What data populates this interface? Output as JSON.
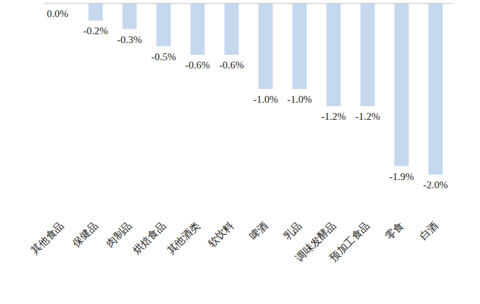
{
  "chart_data": {
    "type": "bar",
    "categories": [
      "其他食品",
      "保健品",
      "肉制品",
      "烘焙食品",
      "其他酒类",
      "软饮料",
      "啤酒",
      "乳品",
      "调味发酵品",
      "预加工食品",
      "零食",
      "白酒"
    ],
    "values": [
      0.0,
      -0.2,
      -0.3,
      -0.5,
      -0.6,
      -0.6,
      -1.0,
      -1.0,
      -1.2,
      -1.2,
      -1.9,
      -2.0
    ],
    "value_labels": [
      "0.0%",
      "-0.2%",
      "-0.3%",
      "-0.5%",
      "-0.6%",
      "-0.6%",
      "-1.0%",
      "-1.0%",
      "-1.2%",
      "-1.2%",
      "-1.9%",
      "-2.0%"
    ],
    "color": "#c6d8f0",
    "ylim": [
      -2.0,
      0
    ],
    "grid": false,
    "data_labels": true,
    "tick_labels": "x"
  }
}
